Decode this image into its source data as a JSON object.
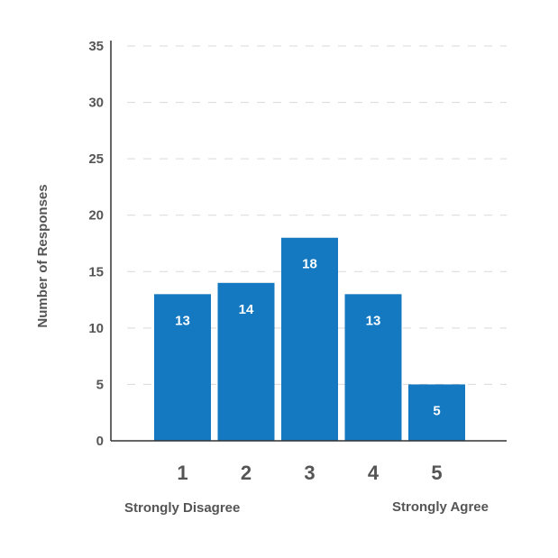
{
  "chart_data": {
    "type": "bar",
    "categories": [
      "1",
      "2",
      "3",
      "4",
      "5"
    ],
    "values": [
      13,
      14,
      18,
      13,
      5
    ],
    "data_labels": [
      "13",
      "14",
      "18",
      "13",
      "5"
    ],
    "title": "",
    "xlabel": "",
    "ylabel": "Number of Responses",
    "ylim": [
      0,
      35
    ],
    "yticks": [
      "0",
      "5",
      "10",
      "15",
      "20",
      "25",
      "30",
      "35"
    ],
    "grid": true,
    "legend": "none",
    "scale_anchors": {
      "left": "Strongly Disagree",
      "right": "Strongly Agree"
    },
    "colors": {
      "bar": "#1479c1",
      "axis": "#333333",
      "grid": "#d9d9d9",
      "text": "#555555",
      "label": "#ffffff"
    }
  }
}
